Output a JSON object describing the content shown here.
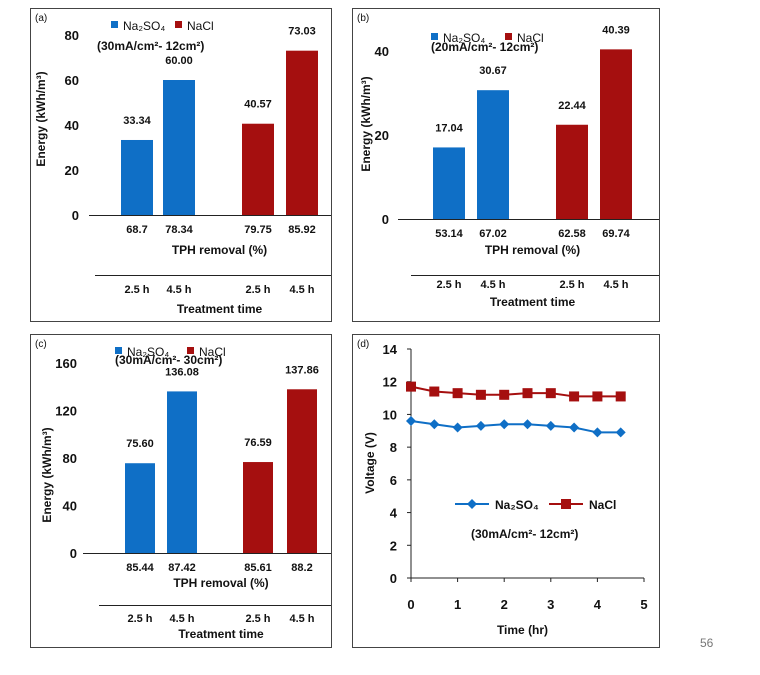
{
  "page_number": "56",
  "colors": {
    "na2so4": "#0f6fc6",
    "nacl": "#a50f0f"
  },
  "legend_labels": {
    "na2so4": "Na₂SO₄",
    "nacl": "NaCl"
  },
  "chart_data": [
    {
      "panel": "(a)",
      "type": "bar",
      "condition": "(30mA/cm²- 12cm²)",
      "ylabel": "Energy (kWh/m³)",
      "xlabel": "TPH removal (%)",
      "time_label": "Treatment time",
      "ylim": [
        0,
        80
      ],
      "yticks": [
        0,
        20,
        40,
        60,
        80
      ],
      "legend": [
        "Na₂SO₄",
        "NaCl"
      ],
      "categories": [
        "2.5 h",
        "4.5 h",
        "2.5 h",
        "4.5 h"
      ],
      "removal": [
        "68.7",
        "78.34",
        "79.75",
        "85.92"
      ],
      "series_names": [
        "Na2SO4",
        "Na2SO4",
        "NaCl",
        "NaCl"
      ],
      "values": [
        33.34,
        60.0,
        40.57,
        73.03
      ],
      "value_labels": [
        "33.34",
        "60.00",
        "40.57",
        "73.03"
      ]
    },
    {
      "panel": "(b)",
      "type": "bar",
      "condition": "(20mA/cm²- 12cm²)",
      "ylabel": "Energy (kWh/m³)",
      "xlabel": "TPH removal (%)",
      "time_label": "Treatment time",
      "ylim": [
        0,
        45
      ],
      "yticks": [
        0,
        20,
        40
      ],
      "legend": [
        "Na₂SO₄",
        "NaCl"
      ],
      "categories": [
        "2.5 h",
        "4.5 h",
        "2.5 h",
        "4.5 h"
      ],
      "removal": [
        "53.14",
        "67.02",
        "62.58",
        "69.74"
      ],
      "series_names": [
        "Na2SO4",
        "Na2SO4",
        "NaCl",
        "NaCl"
      ],
      "values": [
        17.04,
        30.67,
        22.44,
        40.39
      ],
      "value_labels": [
        "17.04",
        "30.67",
        "22.44",
        "40.39"
      ]
    },
    {
      "panel": "(c)",
      "type": "bar",
      "condition": "(30mA/cm²- 30cm²)",
      "ylabel": "Energy (kWh/m³)",
      "xlabel": "TPH removal (%)",
      "time_label": "Treatment time",
      "ylim": [
        0,
        160
      ],
      "yticks": [
        0,
        40,
        80,
        120,
        160
      ],
      "legend": [
        "Na₂SO₄",
        "NaCl"
      ],
      "categories": [
        "2.5 h",
        "4.5 h",
        "2.5 h",
        "4.5 h"
      ],
      "removal": [
        "85.44",
        "87.42",
        "85.61",
        "88.2"
      ],
      "series_names": [
        "Na2SO4",
        "Na2SO4",
        "NaCl",
        "NaCl"
      ],
      "values": [
        75.6,
        136.08,
        76.59,
        137.86
      ],
      "value_labels": [
        "75.60",
        "136.08",
        "76.59",
        "137.86"
      ]
    },
    {
      "panel": "(d)",
      "type": "line",
      "condition": "(30mA/cm²- 12cm²)",
      "xlabel": "Time (hr)",
      "ylabel": "Voltage (V)",
      "xlim": [
        0,
        5
      ],
      "ylim": [
        0,
        14
      ],
      "xticks": [
        0,
        1,
        2,
        3,
        4,
        5
      ],
      "yticks": [
        0,
        2,
        4,
        6,
        8,
        10,
        12,
        14
      ],
      "x": [
        0,
        0.5,
        1,
        1.5,
        2,
        2.5,
        3,
        3.5,
        4,
        4.5
      ],
      "series": [
        {
          "name": "Na₂SO₄",
          "marker": "diamond",
          "values": [
            9.6,
            9.4,
            9.2,
            9.3,
            9.4,
            9.4,
            9.3,
            9.2,
            8.9,
            8.9
          ]
        },
        {
          "name": "NaCl",
          "marker": "square",
          "values": [
            11.7,
            11.4,
            11.3,
            11.2,
            11.2,
            11.3,
            11.3,
            11.1,
            11.1,
            11.1
          ]
        }
      ]
    }
  ]
}
